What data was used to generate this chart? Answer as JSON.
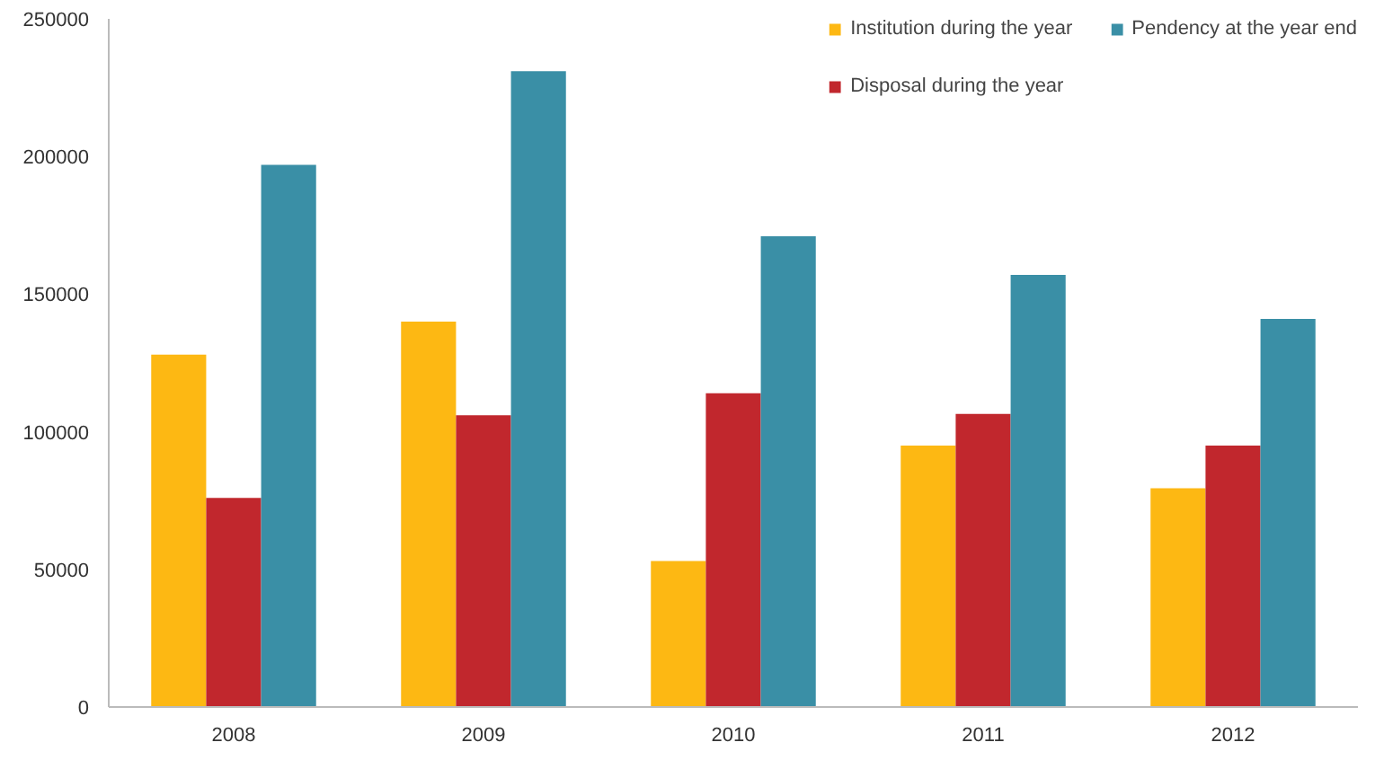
{
  "chart_data": {
    "type": "bar",
    "categories": [
      "2008",
      "2009",
      "2010",
      "2011",
      "2012"
    ],
    "series": [
      {
        "name": "Institution during the year",
        "color": "#fdb813",
        "values": [
          128000,
          140000,
          53000,
          95000,
          79500
        ]
      },
      {
        "name": "Disposal during the year",
        "color": "#c1272d",
        "values": [
          76000,
          106000,
          114000,
          106500,
          95000
        ]
      },
      {
        "name": "Pendency at the year end",
        "color": "#3a8fa6",
        "values": [
          197000,
          231000,
          171000,
          157000,
          141000
        ]
      }
    ],
    "ylim": [
      0,
      250000
    ],
    "yticks": [
      0,
      50000,
      100000,
      150000,
      200000,
      250000
    ],
    "grid": false,
    "legend": "top right"
  }
}
